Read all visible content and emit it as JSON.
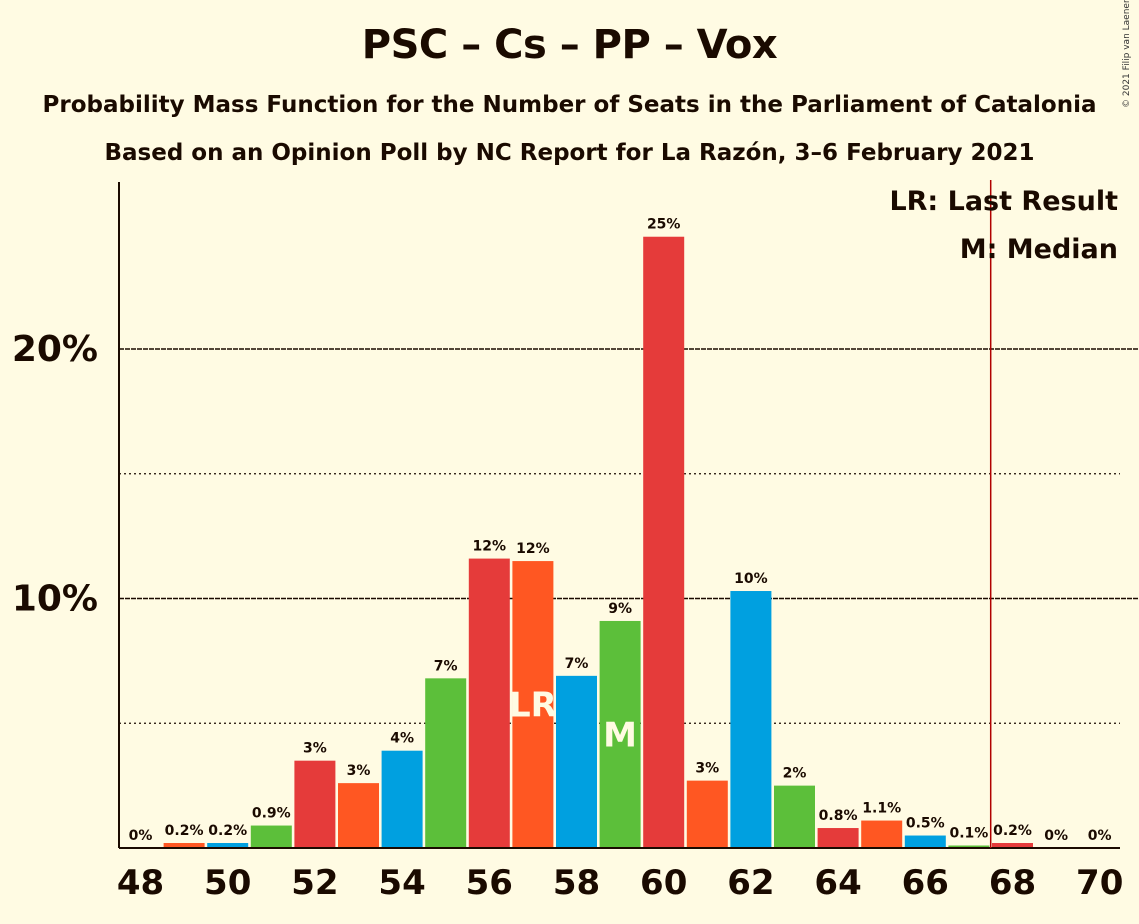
{
  "title": "PSC – Cs – PP – Vox",
  "subtitle": "Probability Mass Function for the Number of Seats in the Parliament of Catalonia",
  "subtitle2": "Based on an Opinion Poll by NC Report for La Razón, 3–6 February 2021",
  "copyright": "© 2021 Filip van Laenen",
  "legend": {
    "last_result": "LR: Last Result",
    "median": "M: Median"
  },
  "chart_data": {
    "type": "bar",
    "x": [
      48,
      49,
      50,
      51,
      52,
      53,
      54,
      55,
      56,
      57,
      58,
      59,
      60,
      61,
      62,
      63,
      64,
      65,
      66,
      67,
      68,
      69,
      70
    ],
    "values": [
      0,
      0.2,
      0.2,
      0.9,
      3.5,
      2.6,
      3.9,
      6.8,
      11.6,
      11.5,
      6.9,
      9.1,
      24.5,
      2.7,
      10.3,
      2.5,
      0.8,
      1.1,
      0.5,
      0.1,
      0.2,
      0,
      0
    ],
    "labels": [
      "0%",
      "0.2%",
      "0.2%",
      "0.9%",
      "3%",
      "3%",
      "4%",
      "7%",
      "12%",
      "12%",
      "7%",
      "9%",
      "25%",
      "3%",
      "10%",
      "2%",
      "0.8%",
      "1.1%",
      "0.5%",
      "0.1%",
      "0.2%",
      "0%",
      "0%"
    ],
    "x_tick_labels": [
      "48",
      "50",
      "52",
      "54",
      "56",
      "58",
      "60",
      "62",
      "64",
      "66",
      "68",
      "70"
    ],
    "y_tick_labels": [
      "10%",
      "20%"
    ],
    "y_ticks": [
      10,
      20
    ],
    "y_minor_ticks": [
      5,
      15
    ],
    "ylim": [
      0,
      26.8
    ],
    "last_result_seat": 57,
    "median_seat": 59,
    "last_result_marker": "LR",
    "median_marker": "M",
    "majority_line_x": 67.5,
    "bar_color_cycle": [
      "#e53b3a",
      "#ff5722",
      "#00a0e0",
      "#5cbf3a"
    ],
    "grid": true
  }
}
